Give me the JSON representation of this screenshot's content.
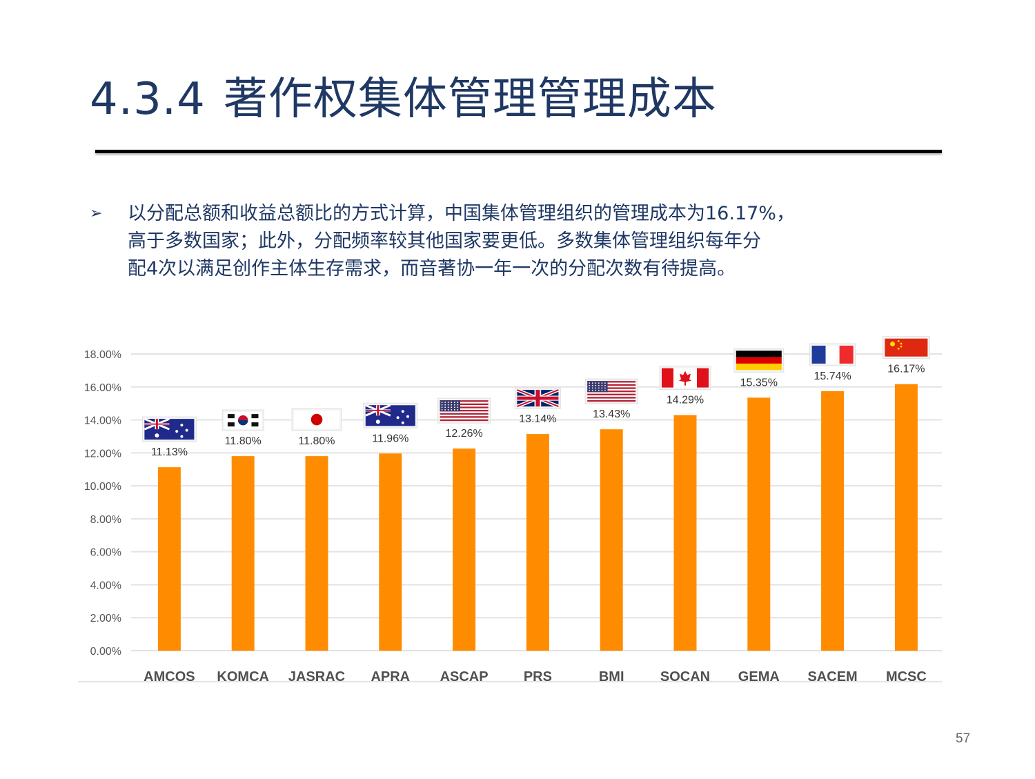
{
  "slide": {
    "title_number": "4.3.4",
    "title_text": "著作权集体管理管理成本",
    "bullet_lines": [
      "以分配总额和收益总额比的方式计算，中国集体管理组织的管理成本为16.17%，",
      "高于多数国家；此外，分配频率较其他国家要更低。多数集体管理组织每年分",
      "配4次以满足创作主体生存需求，而音著协一年一次的分配次数有待提高。"
    ],
    "page_number": "57",
    "bullet_icon": "arrow-bullet-icon"
  },
  "chart_data": {
    "type": "bar",
    "title": "",
    "xlabel": "",
    "ylabel": "",
    "categories": [
      "AMCOS",
      "KOMCA",
      "JASRAC",
      "APRA",
      "ASCAP",
      "PRS",
      "BMI",
      "SOCAN",
      "GEMA",
      "SACEM",
      "MCSC"
    ],
    "values": [
      11.13,
      11.8,
      11.8,
      11.96,
      12.26,
      13.14,
      13.43,
      14.29,
      15.35,
      15.74,
      16.17
    ],
    "data_labels": [
      "11.13%",
      "11.80%",
      "11.80%",
      "11.96%",
      "12.26%",
      "13.14%",
      "13.43%",
      "14.29%",
      "15.35%",
      "15.74%",
      "16.17%"
    ],
    "flags": [
      "australia",
      "south-korea",
      "japan",
      "australia",
      "usa",
      "uk",
      "usa",
      "canada",
      "germany",
      "france",
      "china"
    ],
    "ylim": [
      0,
      18
    ],
    "yticks": [
      0,
      2,
      4,
      6,
      8,
      10,
      12,
      14,
      16,
      18
    ],
    "ytick_labels": [
      "0.00%",
      "2.00%",
      "4.00%",
      "6.00%",
      "8.00%",
      "10.00%",
      "12.00%",
      "14.00%",
      "16.00%",
      "18.00%"
    ],
    "grid": true,
    "bar_color": "#ff8c00"
  }
}
